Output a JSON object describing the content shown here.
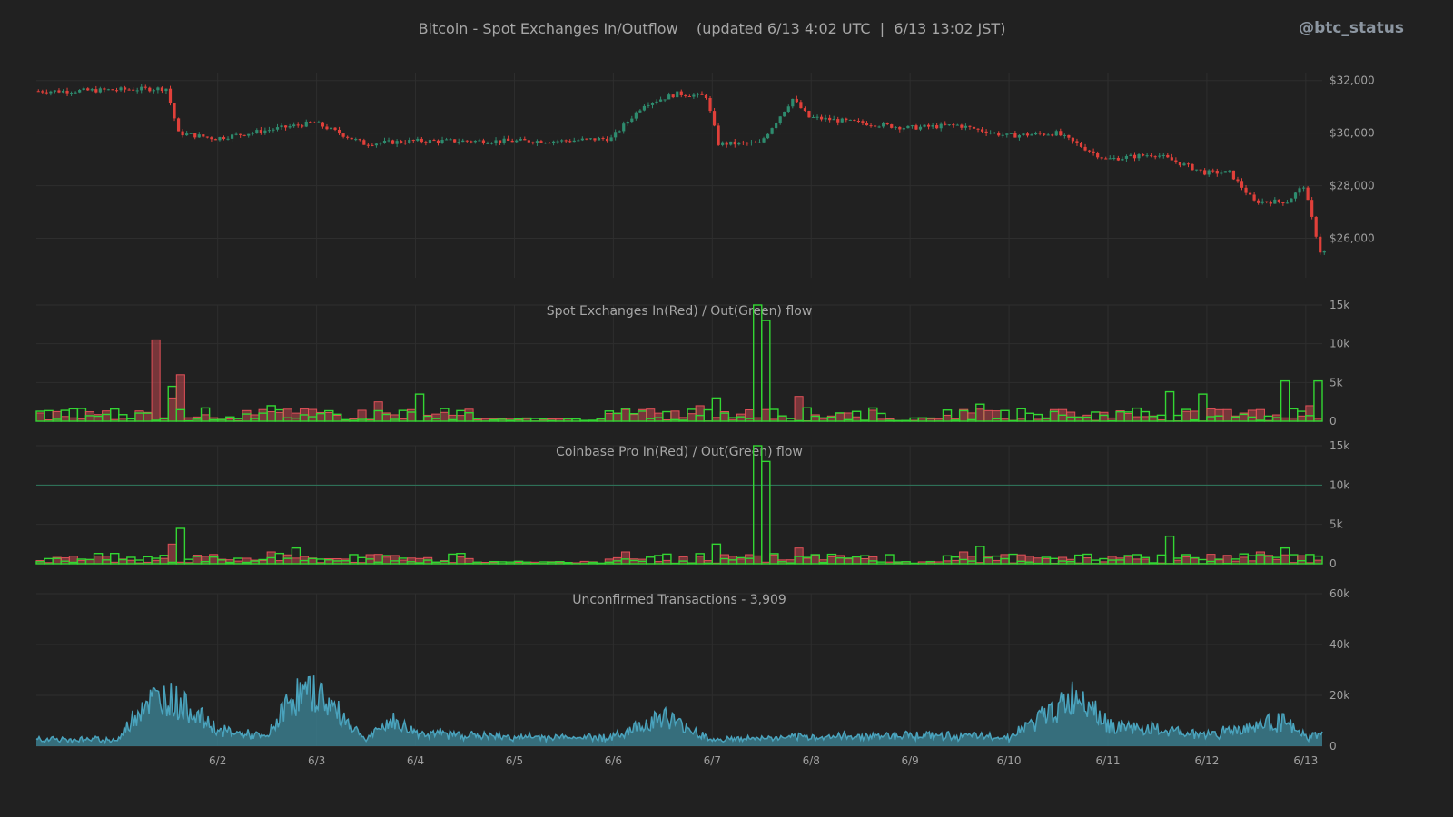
{
  "header": {
    "title": "Bitcoin - Spot Exchanges In/Outflow    (updated 6/13 4:02 UTC  |  6/13 13:02 JST)",
    "handle": "@btc_status"
  },
  "colors": {
    "background": "#212121",
    "grid": "#2e2e2e",
    "up_candle": "#2e8b6e",
    "down_candle": "#e0403a",
    "inflow_red": "#e05058",
    "outflow_green": "#33d633",
    "unconfirmed_fill": "#3a7b8c",
    "unconfirmed_line": "#4aa3bd",
    "reference_line": "#2f7a5e"
  },
  "chart_data": [
    {
      "type": "candlestick",
      "title": "",
      "ylim": [
        24500,
        32300
      ],
      "yticks": [
        "$32,000",
        "$30,000",
        "$28,000",
        "$26,000"
      ],
      "ytick_values": [
        32000,
        30000,
        28000,
        26000
      ],
      "x": [
        "5/31 12:00",
        "6/1 12:00",
        "6/1 15:00",
        "6/2 00:00",
        "6/2 12:00",
        "6/3 00:00",
        "6/3 12:00",
        "6/4 00:00",
        "6/5 00:00",
        "6/5 12:00",
        "6/6 00:00",
        "6/6 08:00",
        "6/6 16:00",
        "6/6 23:00",
        "6/7 02:00",
        "6/7 12:00",
        "6/7 20:00",
        "6/8 00:00",
        "6/8 12:00",
        "6/9 00:00",
        "6/9 12:00",
        "6/10 00:00",
        "6/10 12:00",
        "6/11 00:00",
        "6/11 12:00",
        "6/12 00:00",
        "6/12 06:00",
        "6/12 12:00",
        "6/12 20:00",
        "6/13 00:00",
        "6/13 04:00"
      ],
      "close": [
        31600,
        31700,
        30000,
        29800,
        30100,
        30400,
        29600,
        29700,
        29700,
        29700,
        29800,
        31100,
        31500,
        31400,
        29600,
        29600,
        31300,
        30600,
        30400,
        30200,
        30300,
        29900,
        30000,
        29000,
        29200,
        28500,
        28500,
        27400,
        27400,
        28000,
        25500
      ]
    },
    {
      "type": "bar",
      "title": "Spot Exchanges  In(Red) / Out(Green) flow",
      "ylim": [
        0,
        15000
      ],
      "yticks": [
        "15k",
        "10k",
        "5k",
        "0"
      ],
      "ytick_values": [
        15000,
        10000,
        5000,
        0
      ],
      "series": [
        {
          "name": "In(Red)",
          "x": [
            "6/1 08:00",
            "6/1 12:00",
            "6/1 14:00",
            "6/3 14:00",
            "6/6 02:00",
            "6/6 20:00",
            "6/7 12:00",
            "6/7 20:00",
            "6/9 12:00",
            "6/10 12:00",
            "6/12 12:00",
            "6/13 00:00"
          ],
          "values": [
            10500,
            3000,
            6000,
            2500,
            1500,
            2000,
            1500,
            3200,
            1500,
            1500,
            1500,
            2000
          ]
        },
        {
          "name": "Out(Green)",
          "x": [
            "6/1 12:00",
            "6/2 12:00",
            "6/4 00:00",
            "6/6 23:00",
            "6/7 10:00",
            "6/7 12:00",
            "6/9 15:00",
            "6/11 14:00",
            "6/11 22:00",
            "6/12 18:00",
            "6/13 01:00"
          ],
          "values": [
            4500,
            2000,
            3500,
            3000,
            15000,
            13000,
            2200,
            3800,
            3500,
            5200,
            5200
          ]
        }
      ]
    },
    {
      "type": "bar",
      "title": "Coinbase Pro  In(Red) / Out(Green) flow",
      "ylim": [
        0,
        15000
      ],
      "yticks": [
        "15k",
        "10k",
        "5k",
        "0"
      ],
      "ytick_values": [
        15000,
        10000,
        5000,
        0
      ],
      "reference_line": 10000,
      "series": [
        {
          "name": "In(Red)",
          "x": [
            "6/1 12:00",
            "6/2 12:00",
            "6/6 02:00",
            "6/7 20:00",
            "6/9 12:00",
            "6/12 12:00"
          ],
          "values": [
            2500,
            1500,
            1500,
            2000,
            1500,
            1500
          ]
        },
        {
          "name": "Out(Green)",
          "x": [
            "6/1 14:00",
            "6/2 18:00",
            "6/6 23:00",
            "6/7 10:00",
            "6/7 12:00",
            "6/9 15:00",
            "6/11 14:00",
            "6/12 18:00",
            "6/13 03:00"
          ],
          "values": [
            4500,
            2000,
            2500,
            15000,
            13000,
            2200,
            3500,
            2000,
            3500
          ]
        }
      ]
    },
    {
      "type": "area",
      "title": "Unconfirmed Transactions  -  3,909",
      "ylim": [
        0,
        60000
      ],
      "yticks": [
        "60k",
        "40k",
        "20k",
        "0"
      ],
      "ytick_values": [
        60000,
        40000,
        20000,
        0
      ],
      "x": [
        "6/1 00:00",
        "6/1 06:00",
        "6/1 12:00",
        "6/1 18:00",
        "6/2 00:00",
        "6/2 12:00",
        "6/2 18:00",
        "6/3 00:00",
        "6/3 12:00",
        "6/3 18:00",
        "6/4 00:00",
        "6/5 00:00",
        "6/6 00:00",
        "6/6 12:00",
        "6/7 00:00",
        "6/8 00:00",
        "6/9 00:00",
        "6/10 00:00",
        "6/10 18:00",
        "6/11 00:00",
        "6/12 00:00",
        "6/12 18:00",
        "6/13 00:00",
        "6/13 04:00"
      ],
      "values": [
        2000,
        18000,
        20000,
        14000,
        6000,
        3000,
        20000,
        22000,
        2000,
        10000,
        5000,
        3000,
        3000,
        12000,
        2000,
        3000,
        4000,
        3000,
        22000,
        8000,
        4000,
        10000,
        3000,
        3909
      ]
    }
  ],
  "x_axis": {
    "labels": [
      "6/2",
      "6/3",
      "6/4",
      "6/5",
      "6/6",
      "6/7",
      "6/8",
      "6/9",
      "6/10",
      "6/11",
      "6/12",
      "6/13"
    ]
  }
}
